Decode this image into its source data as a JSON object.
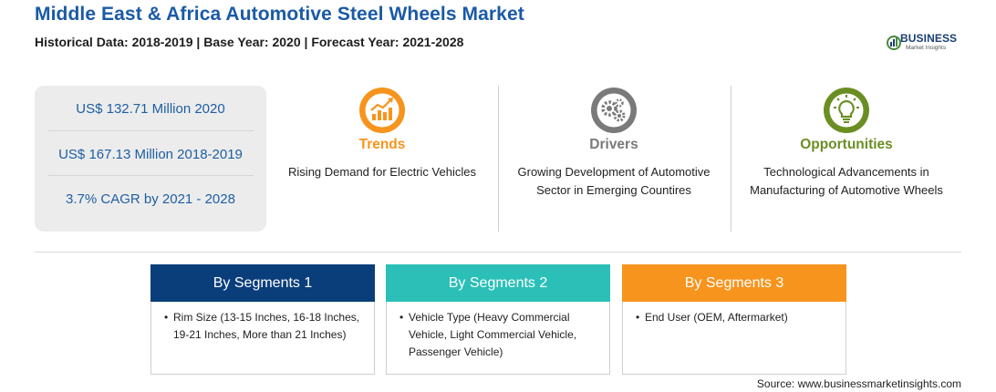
{
  "header": {
    "title": "Middle East & Africa Automotive Steel Wheels Market",
    "subtitle": "Historical Data: 2018-2019 | Base Year: 2020 | Forecast Year: 2021-2028"
  },
  "logo": {
    "brand": "BUSINESS",
    "tagline": "Market Insights"
  },
  "stats": [
    "US$ 132.71 Million 2020",
    "US$ 167.13 Million 2018-2019",
    "3.7% CAGR by 2021 - 2028"
  ],
  "columns": [
    {
      "heading": "Trends",
      "text": "Rising Demand for Electric Vehicles",
      "color": "#f7941d",
      "icon": "growth-chart-icon"
    },
    {
      "heading": "Drivers",
      "text": "Growing Development of Automotive Sector in Emerging Countires",
      "color": "#7a7a7a",
      "icon": "gears-icon"
    },
    {
      "heading": "Opportunities",
      "text": "Technological Advancements in Manufacturing of Automotive Wheels",
      "color": "#6b8e23",
      "icon": "lightbulb-icon"
    }
  ],
  "segments": [
    {
      "heading": "By Segments 1",
      "bullet": "•",
      "item": "Rim Size (13-15 Inches, 16-18 Inches, 19-21 Inches, More than 21 Inches)",
      "color": "#0a3e7a"
    },
    {
      "heading": "By Segments 2",
      "bullet": "•",
      "item": "Vehicle Type (Heavy Commercial Vehicle, Light Commercial Vehicle, Passenger Vehicle)",
      "color": "#2bbfb8"
    },
    {
      "heading": "By Segments 3",
      "bullet": "•",
      "item": "End User (OEM, Aftermarket)",
      "color": "#f7941d"
    }
  ],
  "source": "Source: www.businessmarketinsights.com"
}
